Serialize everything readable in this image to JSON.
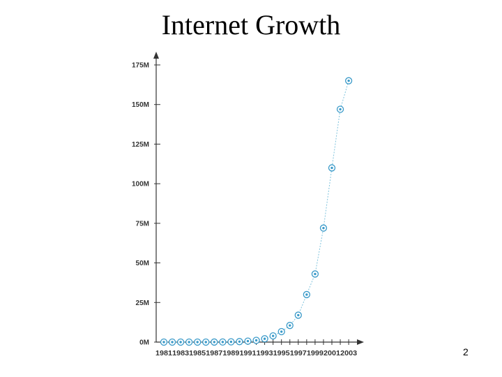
{
  "slide": {
    "title": "Internet Growth",
    "page_number": "2"
  },
  "colors": {
    "axis": "#333333",
    "marker": "#3a9ac9",
    "line": "#7fc3dd"
  },
  "chart_data": {
    "type": "line",
    "title": "",
    "xlabel": "",
    "ylabel": "",
    "x": [
      1981,
      1982,
      1983,
      1984,
      1985,
      1986,
      1987,
      1988,
      1989,
      1990,
      1991,
      1992,
      1993,
      1994,
      1995,
      1996,
      1997,
      1998,
      1999,
      2000,
      2001,
      2002,
      2003
    ],
    "x_tick_labels": [
      "1981",
      "1983",
      "1985",
      "1987",
      "1989",
      "1991",
      "1993",
      "1995",
      "1997",
      "1999",
      "2001",
      "2003"
    ],
    "series": [
      {
        "values_millions": [
          0.0002,
          0.0002,
          0.0006,
          0.001,
          0.002,
          0.005,
          0.028,
          0.06,
          0.16,
          0.31,
          0.62,
          1.1,
          2.1,
          3.9,
          6.6,
          10.5,
          17,
          30,
          43,
          72,
          110,
          147,
          165
        ]
      }
    ],
    "ylim": [
      0,
      175
    ],
    "y_ticks": [
      0,
      25,
      50,
      75,
      100,
      125,
      150,
      175
    ],
    "y_tick_labels": [
      "0M",
      "25M",
      "50M",
      "75M",
      "100M",
      "125M",
      "150M",
      "175M"
    ],
    "grid": false,
    "legend": "none"
  }
}
